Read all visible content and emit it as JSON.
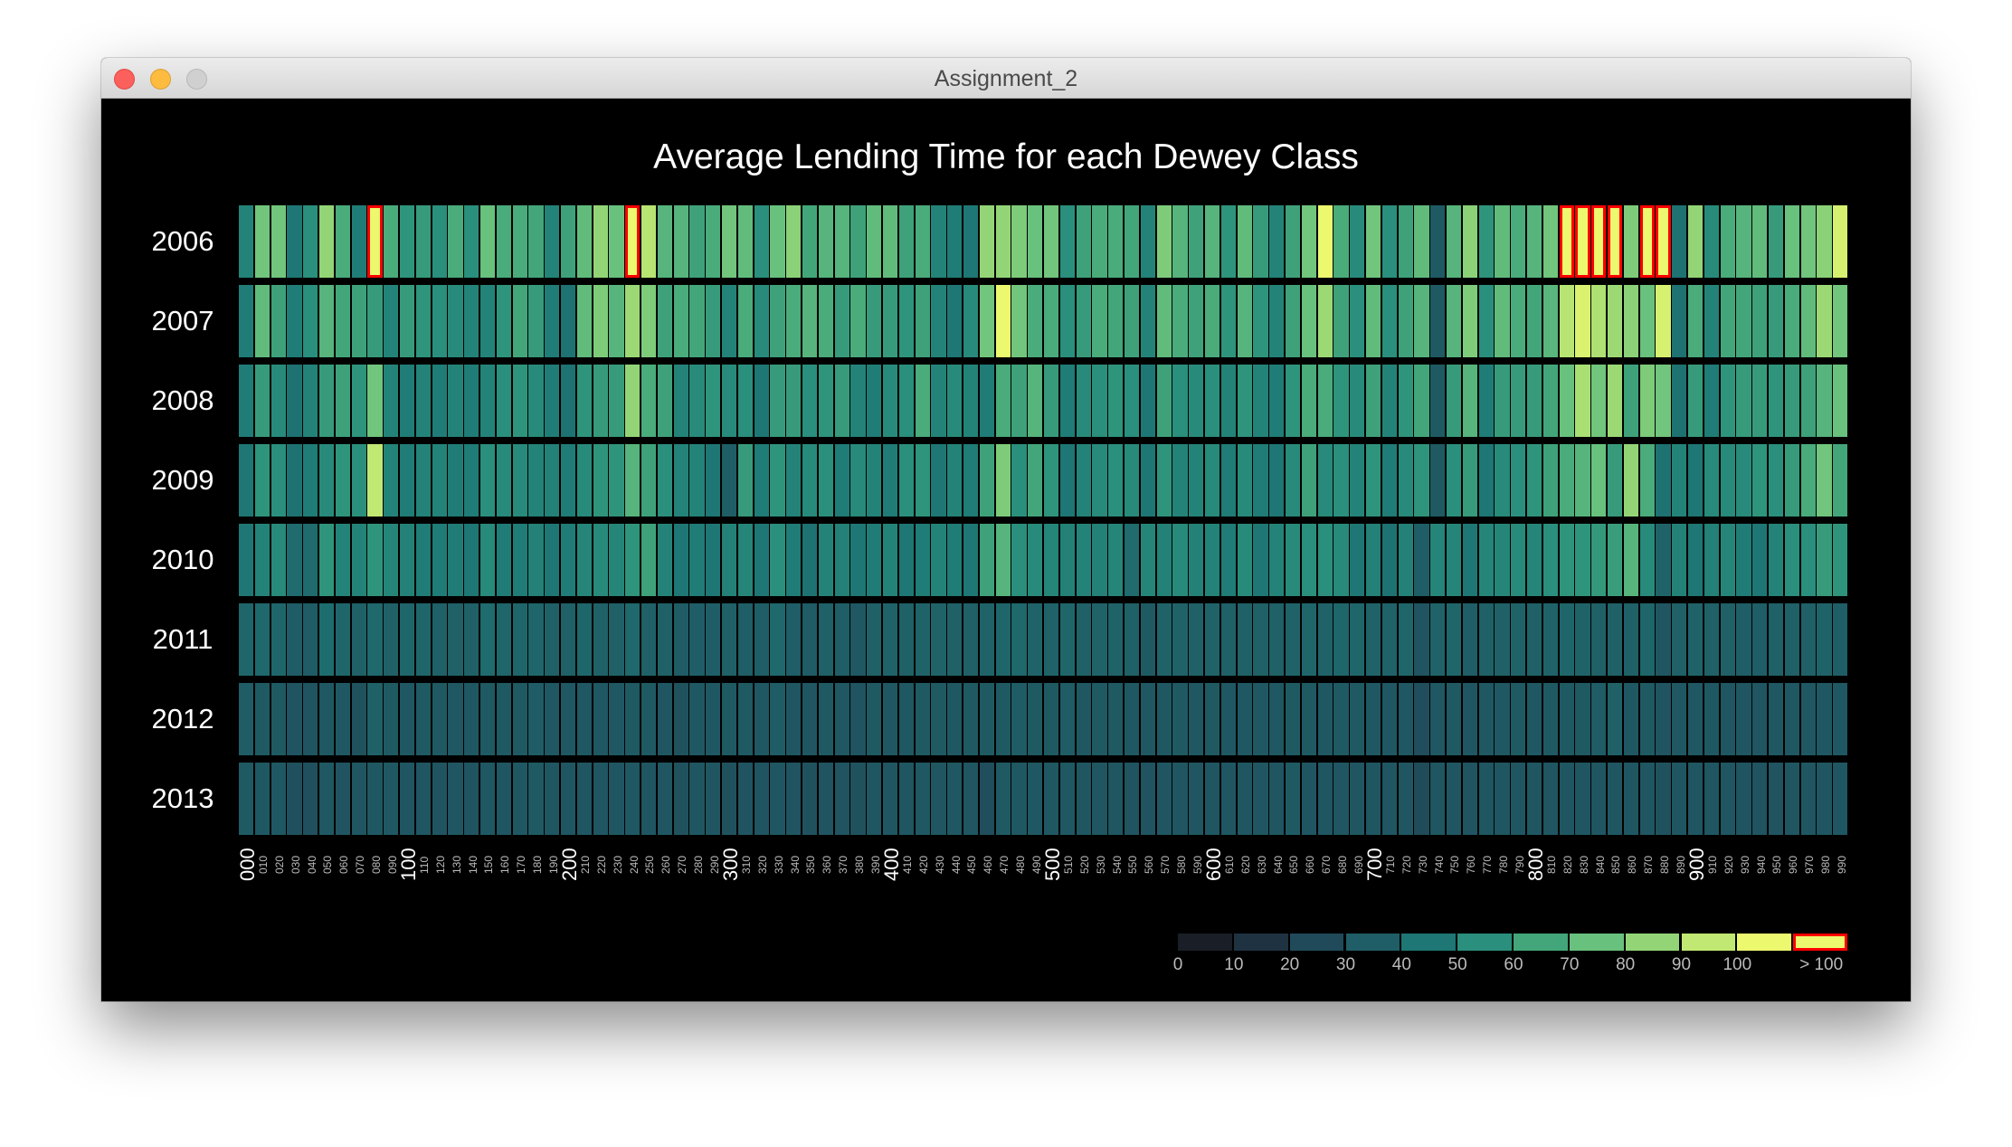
{
  "window": {
    "title": "Assignment_2"
  },
  "chart_data": {
    "type": "heatmap",
    "title": "Average Lending Time for each Dewey Class",
    "xlabel": "",
    "ylabel": "",
    "rows": [
      "2006",
      "2007",
      "2008",
      "2009",
      "2010",
      "2011",
      "2012",
      "2013"
    ],
    "columns": [
      "000",
      "010",
      "020",
      "030",
      "040",
      "050",
      "060",
      "070",
      "080",
      "090",
      "100",
      "110",
      "120",
      "130",
      "140",
      "150",
      "160",
      "170",
      "180",
      "190",
      "200",
      "210",
      "220",
      "230",
      "240",
      "250",
      "260",
      "270",
      "280",
      "290",
      "300",
      "310",
      "320",
      "330",
      "340",
      "350",
      "360",
      "370",
      "380",
      "390",
      "400",
      "410",
      "420",
      "430",
      "440",
      "450",
      "460",
      "470",
      "480",
      "490",
      "500",
      "510",
      "520",
      "530",
      "540",
      "550",
      "560",
      "570",
      "580",
      "590",
      "600",
      "610",
      "620",
      "630",
      "640",
      "650",
      "660",
      "670",
      "680",
      "690",
      "700",
      "710",
      "720",
      "730",
      "740",
      "750",
      "760",
      "770",
      "780",
      "790",
      "800",
      "810",
      "820",
      "830",
      "840",
      "850",
      "860",
      "870",
      "880",
      "890",
      "900",
      "910",
      "920",
      "930",
      "940",
      "950",
      "960",
      "970",
      "980",
      "990"
    ],
    "major_ticks": [
      "000",
      "100",
      "200",
      "300",
      "400",
      "500",
      "600",
      "700",
      "800",
      "900"
    ],
    "over_threshold": 100,
    "values": [
      [
        45,
        72,
        72,
        40,
        50,
        80,
        62,
        42,
        110,
        62,
        52,
        55,
        50,
        62,
        50,
        70,
        62,
        62,
        60,
        45,
        58,
        68,
        80,
        70,
        110,
        88,
        65,
        65,
        58,
        62,
        72,
        68,
        50,
        70,
        78,
        60,
        65,
        65,
        58,
        68,
        68,
        58,
        62,
        45,
        42,
        40,
        80,
        80,
        75,
        70,
        72,
        50,
        58,
        62,
        62,
        60,
        45,
        75,
        65,
        58,
        65,
        52,
        68,
        55,
        45,
        58,
        72,
        100,
        62,
        48,
        72,
        50,
        58,
        68,
        28,
        65,
        78,
        52,
        68,
        62,
        65,
        72,
        110,
        110,
        110,
        110,
        75,
        110,
        110,
        38,
        80,
        48,
        62,
        65,
        68,
        55,
        70,
        72,
        78,
        95
      ],
      [
        42,
        68,
        58,
        42,
        50,
        65,
        60,
        58,
        55,
        45,
        55,
        52,
        50,
        48,
        45,
        45,
        52,
        60,
        55,
        42,
        38,
        68,
        75,
        65,
        82,
        75,
        58,
        62,
        60,
        55,
        45,
        62,
        48,
        58,
        62,
        65,
        62,
        55,
        62,
        55,
        55,
        52,
        58,
        45,
        40,
        48,
        72,
        100,
        72,
        62,
        62,
        50,
        55,
        62,
        60,
        58,
        45,
        68,
        62,
        58,
        62,
        52,
        65,
        52,
        45,
        58,
        70,
        82,
        58,
        50,
        68,
        50,
        58,
        65,
        28,
        65,
        75,
        50,
        68,
        62,
        60,
        66,
        88,
        96,
        86,
        82,
        78,
        70,
        95,
        38,
        62,
        45,
        60,
        60,
        58,
        55,
        62,
        68,
        82,
        72
      ],
      [
        42,
        55,
        48,
        38,
        45,
        55,
        58,
        52,
        72,
        45,
        42,
        45,
        42,
        45,
        42,
        45,
        50,
        52,
        48,
        42,
        38,
        52,
        55,
        55,
        80,
        62,
        58,
        45,
        48,
        52,
        48,
        50,
        40,
        55,
        55,
        50,
        52,
        55,
        45,
        42,
        48,
        50,
        62,
        45,
        48,
        45,
        42,
        62,
        58,
        65,
        55,
        42,
        48,
        50,
        52,
        50,
        40,
        58,
        50,
        48,
        50,
        45,
        52,
        45,
        42,
        52,
        62,
        62,
        52,
        48,
        58,
        45,
        52,
        60,
        28,
        55,
        65,
        42,
        55,
        55,
        55,
        60,
        70,
        85,
        72,
        82,
        58,
        75,
        72,
        38,
        55,
        42,
        52,
        55,
        55,
        52,
        55,
        58,
        65,
        70
      ],
      [
        40,
        52,
        50,
        38,
        42,
        48,
        52,
        50,
        90,
        45,
        42,
        45,
        45,
        42,
        42,
        50,
        48,
        48,
        45,
        44,
        42,
        48,
        52,
        52,
        65,
        58,
        50,
        45,
        45,
        40,
        30,
        55,
        42,
        52,
        45,
        48,
        50,
        42,
        48,
        45,
        42,
        50,
        52,
        40,
        45,
        42,
        58,
        75,
        50,
        60,
        52,
        40,
        45,
        48,
        50,
        48,
        40,
        52,
        45,
        45,
        48,
        42,
        48,
        42,
        40,
        48,
        58,
        48,
        50,
        45,
        52,
        42,
        48,
        52,
        28,
        50,
        55,
        40,
        48,
        50,
        52,
        58,
        62,
        65,
        70,
        55,
        80,
        62,
        38,
        45,
        40,
        48,
        48,
        48,
        52,
        50,
        55,
        62,
        72,
        60
      ],
      [
        40,
        45,
        48,
        35,
        35,
        52,
        45,
        45,
        52,
        46,
        44,
        42,
        42,
        42,
        40,
        48,
        42,
        42,
        44,
        40,
        42,
        46,
        48,
        46,
        52,
        58,
        45,
        40,
        42,
        40,
        44,
        46,
        40,
        50,
        42,
        38,
        45,
        44,
        40,
        42,
        45,
        40,
        42,
        45,
        42,
        40,
        58,
        65,
        50,
        48,
        46,
        44,
        45,
        44,
        46,
        35,
        46,
        44,
        48,
        44,
        45,
        42,
        48,
        40,
        45,
        48,
        50,
        50,
        48,
        40,
        44,
        38,
        44,
        30,
        46,
        46,
        40,
        46,
        46,
        48,
        46,
        50,
        52,
        52,
        54,
        56,
        65,
        48,
        32,
        44,
        40,
        44,
        46,
        42,
        40,
        45,
        50,
        50,
        55,
        52
      ],
      [
        33,
        34,
        33,
        29,
        29,
        36,
        33,
        31,
        34,
        31,
        33,
        33,
        31,
        31,
        31,
        35,
        33,
        33,
        33,
        31,
        31,
        33,
        31,
        31,
        34,
        31,
        31,
        29,
        30,
        30,
        31,
        30,
        30,
        34,
        30,
        29,
        31,
        30,
        27,
        31,
        32,
        31,
        32,
        32,
        31,
        31,
        32,
        33,
        34,
        32,
        32,
        33,
        31,
        32,
        32,
        31,
        28,
        32,
        32,
        31,
        32,
        31,
        31,
        31,
        31,
        32,
        33,
        32,
        33,
        33,
        32,
        32,
        33,
        25,
        32,
        33,
        30,
        31,
        31,
        32,
        31,
        32,
        33,
        32,
        31,
        31,
        31,
        33,
        26,
        31,
        32,
        31,
        31,
        30,
        30,
        31,
        31,
        31,
        32,
        30
      ],
      [
        29,
        28,
        28,
        25,
        25,
        27,
        27,
        24,
        31,
        28,
        27,
        28,
        28,
        27,
        27,
        28,
        28,
        28,
        29,
        27,
        27,
        27,
        27,
        27,
        28,
        28,
        26,
        24,
        27,
        27,
        28,
        28,
        27,
        29,
        26,
        26,
        28,
        27,
        25,
        28,
        27,
        27,
        28,
        28,
        27,
        28,
        28,
        28,
        29,
        28,
        28,
        29,
        27,
        28,
        28,
        27,
        27,
        27,
        28,
        27,
        28,
        27,
        27,
        27,
        27,
        28,
        28,
        27,
        28,
        28,
        27,
        27,
        27,
        22,
        27,
        28,
        26,
        27,
        27,
        28,
        27,
        28,
        28,
        28,
        29,
        31,
        27,
        28,
        25,
        27,
        27,
        27,
        26,
        26,
        26,
        27,
        27,
        27,
        27,
        27
      ],
      [
        28,
        27,
        27,
        23,
        23,
        27,
        25,
        26,
        27,
        27,
        26,
        26,
        25,
        26,
        25,
        27,
        26,
        27,
        28,
        26,
        26,
        26,
        26,
        26,
        27,
        26,
        26,
        24,
        26,
        26,
        24,
        25,
        25,
        26,
        25,
        24,
        25,
        25,
        24,
        26,
        26,
        26,
        27,
        26,
        27,
        26,
        22,
        28,
        27,
        27,
        27,
        27,
        26,
        26,
        26,
        25,
        25,
        26,
        26,
        26,
        26,
        26,
        26,
        26,
        26,
        28,
        26,
        26,
        26,
        26,
        26,
        26,
        26,
        21,
        26,
        26,
        25,
        26,
        26,
        26,
        26,
        26,
        26,
        26,
        26,
        26,
        26,
        26,
        24,
        26,
        26,
        26,
        26,
        25,
        25,
        25,
        26,
        26,
        26,
        26
      ]
    ],
    "legend": {
      "placement": "bottom-right",
      "labels": [
        "0",
        "10",
        "20",
        "30",
        "40",
        "50",
        "60",
        "70",
        "80",
        "90",
        "100",
        "> 100"
      ],
      "colors": [
        "#1a1e26",
        "#1f3241",
        "#204a59",
        "#1f5e66",
        "#1e7774",
        "#2a8f7c",
        "#43a67a",
        "#68c17d",
        "#93d576",
        "#c0e872",
        "#ecf86e",
        "#ecf86e"
      ],
      "over_outline": "#ff0000"
    },
    "grid": false
  }
}
